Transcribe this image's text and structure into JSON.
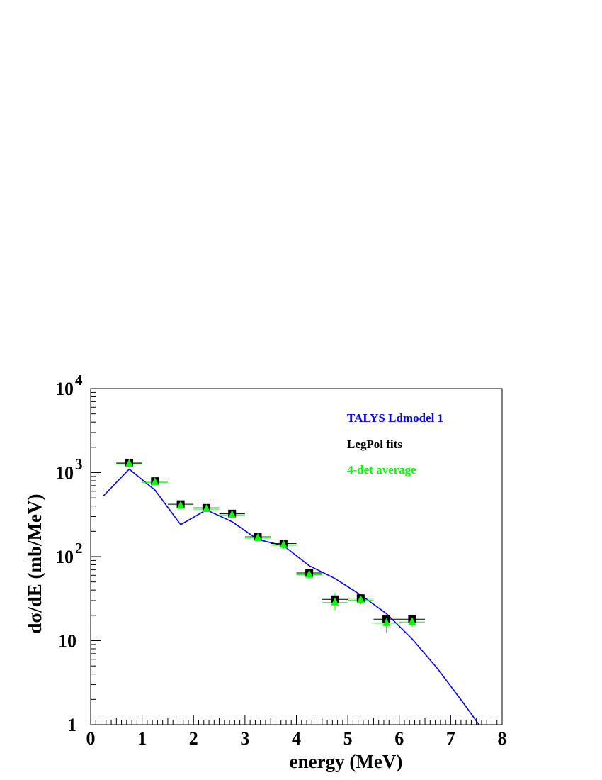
{
  "chart_data": {
    "type": "scatter",
    "xlabel": "energy (MeV)",
    "ylabel": "dσ/dE (mb/MeV)",
    "xlim": [
      0,
      8
    ],
    "ylim": [
      1,
      10000
    ],
    "y_scale": "log",
    "x_ticks": [
      "0",
      "1",
      "2",
      "3",
      "4",
      "5",
      "6",
      "7",
      "8"
    ],
    "y_ticks": [
      {
        "value": 1,
        "label": "1",
        "exp": ""
      },
      {
        "value": 10,
        "label": "10",
        "exp": ""
      },
      {
        "value": 100,
        "label": "10",
        "exp": "2"
      },
      {
        "value": 1000,
        "label": "10",
        "exp": "3"
      },
      {
        "value": 10000,
        "label": "10",
        "exp": "4"
      }
    ],
    "legend_position": "top-right",
    "grid": false,
    "series": [
      {
        "name": "TALYS Ldmodel 1",
        "kind": "line",
        "color": "#0000ff",
        "x": [
          0.25,
          0.75,
          1.25,
          1.75,
          2.25,
          2.75,
          3.25,
          3.75,
          4.25,
          4.75,
          5.25,
          5.75,
          6.25,
          6.75,
          7.25,
          7.55
        ],
        "y": [
          530,
          1100,
          620,
          240,
          360,
          260,
          160,
          135,
          78,
          55,
          35,
          21,
          10.5,
          4.6,
          1.8,
          1.0
        ]
      },
      {
        "name": "LegPol fits",
        "kind": "marker",
        "marker": "square",
        "color": "#000000",
        "x": [
          0.75,
          1.25,
          1.75,
          2.25,
          2.75,
          3.25,
          3.75,
          4.25,
          4.75,
          5.25,
          5.75,
          6.25
        ],
        "y": [
          1300,
          790,
          420,
          380,
          325,
          172,
          143,
          64,
          31,
          32,
          18,
          18
        ],
        "xerr": 0.25
      },
      {
        "name": "4-det average",
        "kind": "marker",
        "marker": "triangle",
        "color": "#00ff00",
        "x": [
          0.75,
          1.25,
          1.75,
          2.25,
          2.75,
          3.25,
          3.75,
          4.25,
          4.75,
          5.25,
          5.75,
          6.25
        ],
        "y": [
          1300,
          780,
          410,
          375,
          320,
          170,
          140,
          62,
          29,
          31,
          16.5,
          17
        ],
        "yerr_low": [
          1180,
          720,
          370,
          340,
          290,
          155,
          125,
          55,
          23,
          27,
          12.5,
          14.5
        ],
        "yerr_high": [
          1430,
          850,
          450,
          410,
          350,
          185,
          155,
          70,
          37,
          36,
          20,
          19.5
        ],
        "xerr": 0.25
      }
    ]
  }
}
